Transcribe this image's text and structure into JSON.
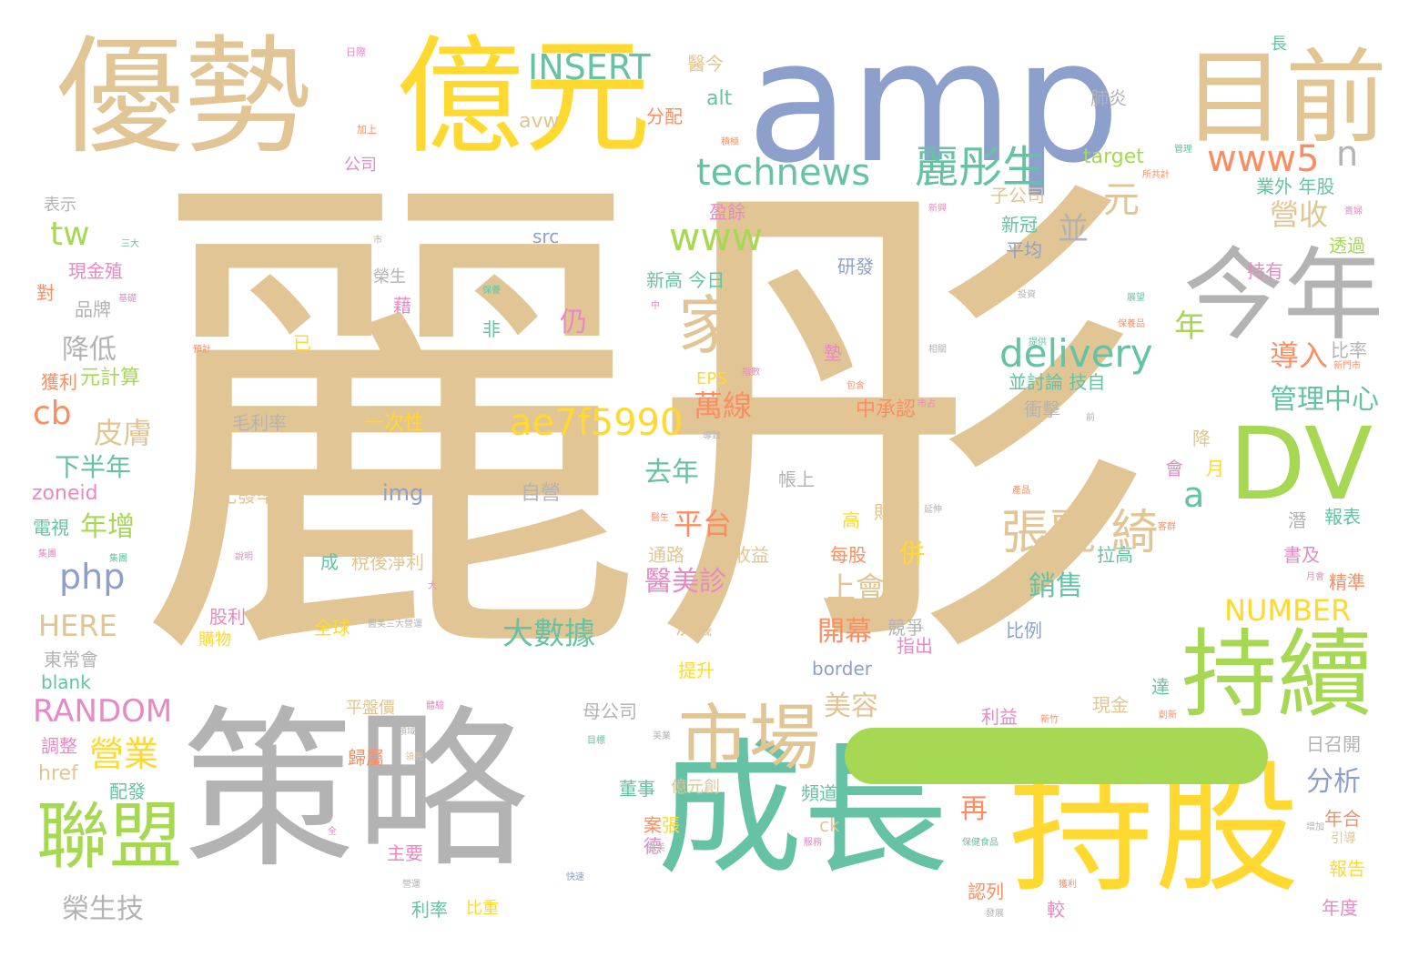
{
  "palette": {
    "tan": "#e2c594",
    "blue": "#8da0cb",
    "yellow": "#ffd92f",
    "grey": "#b3b3b3",
    "teal": "#66c2a5",
    "green": "#a6d854",
    "orange": "#fc8d62",
    "pink": "#e78ac3"
  },
  "words": [
    {
      "text": "麗彤",
      "color": "tan"
    },
    {
      "text": "amp",
      "color": "blue"
    },
    {
      "text": "優勢",
      "color": "tan"
    },
    {
      "text": "億元",
      "color": "yellow"
    },
    {
      "text": "策略",
      "color": "grey"
    },
    {
      "text": "成長",
      "color": "teal"
    },
    {
      "text": "持股",
      "color": "yellow"
    },
    {
      "text": "一",
      "color": "green"
    },
    {
      "text": "目前",
      "color": "tan"
    },
    {
      "text": "今年",
      "color": "grey"
    },
    {
      "text": "DV",
      "color": "green"
    },
    {
      "text": "持續",
      "color": "green"
    },
    {
      "text": "聯盟",
      "color": "green"
    },
    {
      "text": "市場",
      "color": "tan"
    },
    {
      "text": "家",
      "color": "tan"
    },
    {
      "text": "technews",
      "color": "teal"
    },
    {
      "text": "麗彤生",
      "color": "teal"
    },
    {
      "text": "INSERT",
      "color": "teal"
    },
    {
      "text": "www5",
      "color": "orange"
    },
    {
      "text": "www",
      "color": "green"
    },
    {
      "text": "delivery",
      "color": "teal"
    },
    {
      "text": "張麗 綺",
      "color": "tan"
    },
    {
      "text": "ae7f5990",
      "color": "yellow"
    },
    {
      "text": "php",
      "color": "blue"
    },
    {
      "text": "tw",
      "color": "green"
    },
    {
      "text": "cb",
      "color": "orange"
    },
    {
      "text": "營業",
      "color": "yellow"
    },
    {
      "text": "RANDOM",
      "color": "pink"
    },
    {
      "text": "HERE",
      "color": "tan"
    },
    {
      "text": "NUMBER",
      "color": "yellow"
    },
    {
      "text": "大數據",
      "color": "teal"
    },
    {
      "text": "皮膚",
      "color": "tan"
    },
    {
      "text": "降低",
      "color": "grey"
    },
    {
      "text": "下半年",
      "color": "teal"
    },
    {
      "text": "年增",
      "color": "green"
    },
    {
      "text": "元計算",
      "color": "green"
    },
    {
      "text": "zoneid",
      "color": "pink"
    },
    {
      "text": "電視",
      "color": "teal"
    },
    {
      "text": "榮生技",
      "color": "grey"
    },
    {
      "text": "blank",
      "color": "teal"
    },
    {
      "text": "href",
      "color": "tan"
    },
    {
      "text": "調整",
      "color": "pink"
    },
    {
      "text": "東常會",
      "color": "grey"
    },
    {
      "text": "元",
      "color": "tan"
    },
    {
      "text": "a",
      "color": "teal"
    },
    {
      "text": "n",
      "color": "grey"
    },
    {
      "text": "年",
      "color": "green"
    },
    {
      "text": "並",
      "color": "grey"
    },
    {
      "text": "營收",
      "color": "tan"
    },
    {
      "text": "導入",
      "color": "orange"
    },
    {
      "text": "管理中心",
      "color": "teal"
    },
    {
      "text": "萬線",
      "color": "orange"
    },
    {
      "text": "去年",
      "color": "teal"
    },
    {
      "text": "平台",
      "color": "orange"
    },
    {
      "text": "醫美診",
      "color": "pink"
    },
    {
      "text": "上會員",
      "color": "tan"
    },
    {
      "text": "開幕",
      "color": "orange"
    },
    {
      "text": "美容",
      "color": "tan"
    },
    {
      "text": "銷售",
      "color": "teal"
    },
    {
      "text": "分析",
      "color": "blue"
    },
    {
      "text": "再",
      "color": "orange"
    },
    {
      "text": "仍",
      "color": "pink"
    },
    {
      "text": "併",
      "color": "yellow"
    },
    {
      "text": "毛利率",
      "color": "grey"
    },
    {
      "text": "一次性",
      "color": "yellow"
    },
    {
      "text": "中承認",
      "color": "orange"
    },
    {
      "text": "img",
      "color": "blue"
    },
    {
      "text": "自營",
      "color": "grey"
    },
    {
      "text": "配發率",
      "color": "tan"
    },
    {
      "text": "研發",
      "color": "blue"
    },
    {
      "text": "新高 今日",
      "color": "teal"
    },
    {
      "text": "src",
      "color": "blue"
    },
    {
      "text": "alt",
      "color": "teal"
    },
    {
      "text": "分配",
      "color": "orange"
    },
    {
      "text": "avw",
      "color": "tan"
    },
    {
      "text": "醫今",
      "color": "tan"
    },
    {
      "text": "肺炎",
      "color": "grey"
    },
    {
      "text": "target",
      "color": "green"
    },
    {
      "text": "業外 年股",
      "color": "teal"
    },
    {
      "text": "透過",
      "color": "green"
    },
    {
      "text": "持有",
      "color": "pink"
    },
    {
      "text": "比率",
      "color": "grey"
    },
    {
      "text": "新冠",
      "color": "teal"
    },
    {
      "text": "平均",
      "color": "blue"
    },
    {
      "text": "子公司",
      "color": "tan"
    },
    {
      "text": "並討論 技自",
      "color": "teal"
    },
    {
      "text": "衝擊",
      "color": "grey"
    },
    {
      "text": "報表",
      "color": "teal"
    },
    {
      "text": "書及",
      "color": "pink"
    },
    {
      "text": "精準",
      "color": "orange"
    },
    {
      "text": "日召開",
      "color": "grey"
    },
    {
      "text": "年合",
      "color": "orange"
    },
    {
      "text": "報告",
      "color": "yellow"
    },
    {
      "text": "年度",
      "color": "pink"
    },
    {
      "text": "引導",
      "color": "tan"
    },
    {
      "text": "拉高",
      "color": "teal"
    },
    {
      "text": "利益",
      "color": "pink"
    },
    {
      "text": "比例",
      "color": "blue"
    },
    {
      "text": "現金",
      "color": "tan"
    },
    {
      "text": "達",
      "color": "teal"
    },
    {
      "text": "會",
      "color": "pink"
    },
    {
      "text": "月",
      "color": "yellow"
    },
    {
      "text": "降",
      "color": "tan"
    },
    {
      "text": "潛",
      "color": "grey"
    },
    {
      "text": "EPS",
      "color": "yellow"
    },
    {
      "text": "帳上",
      "color": "grey"
    },
    {
      "text": "高",
      "color": "yellow"
    },
    {
      "text": "財務",
      "color": "tan"
    },
    {
      "text": "通路",
      "color": "tan"
    },
    {
      "text": "收益",
      "color": "tan"
    },
    {
      "text": "每股",
      "color": "orange"
    },
    {
      "text": "決議",
      "color": "tan"
    },
    {
      "text": "競爭",
      "color": "grey"
    },
    {
      "text": "指出",
      "color": "pink"
    },
    {
      "text": "border",
      "color": "blue"
    },
    {
      "text": "提升",
      "color": "yellow"
    },
    {
      "text": "稅後淨利",
      "color": "tan"
    },
    {
      "text": "成",
      "color": "teal"
    },
    {
      "text": "股利",
      "color": "pink"
    },
    {
      "text": "全球",
      "color": "yellow"
    },
    {
      "text": "購物",
      "color": "yellow"
    },
    {
      "text": "平盤價",
      "color": "tan"
    },
    {
      "text": "歸屬",
      "color": "orange"
    },
    {
      "text": "母公司",
      "color": "grey"
    },
    {
      "text": "配發",
      "color": "teal"
    },
    {
      "text": "董事",
      "color": "teal"
    },
    {
      "text": "億元創",
      "color": "tan"
    },
    {
      "text": "頻道",
      "color": "teal"
    },
    {
      "text": "案",
      "color": "orange"
    },
    {
      "text": "德",
      "color": "pink"
    },
    {
      "text": "主要",
      "color": "pink"
    },
    {
      "text": "利率",
      "color": "teal"
    },
    {
      "text": "比重",
      "color": "yellow"
    },
    {
      "text": "認列",
      "color": "orange"
    },
    {
      "text": "較",
      "color": "pink"
    },
    {
      "text": "ck",
      "color": "tan"
    },
    {
      "text": "現金殖",
      "color": "pink"
    },
    {
      "text": "對",
      "color": "orange"
    },
    {
      "text": "品牌",
      "color": "grey"
    },
    {
      "text": "獲利",
      "color": "orange"
    },
    {
      "text": "表示",
      "color": "grey"
    },
    {
      "text": "公司",
      "color": "pink"
    },
    {
      "text": "盈餘",
      "color": "pink"
    },
    {
      "text": "榮生",
      "color": "grey"
    },
    {
      "text": "藉",
      "color": "pink"
    },
    {
      "text": "非",
      "color": "teal"
    },
    {
      "text": "已",
      "color": "yellow"
    },
    {
      "text": "墊",
      "color": "pink"
    },
    {
      "text": "近",
      "color": "tan"
    },
    {
      "text": "長",
      "color": "teal"
    },
    {
      "text": "日際",
      "color": "pink"
    },
    {
      "text": "加上",
      "color": "orange"
    },
    {
      "text": "三大",
      "color": "teal"
    },
    {
      "text": "市",
      "color": "grey"
    },
    {
      "text": "基礎",
      "color": "pink"
    },
    {
      "text": "預計",
      "color": "orange"
    },
    {
      "text": "中",
      "color": "pink"
    },
    {
      "text": "保養",
      "color": "teal"
    },
    {
      "text": "所共計",
      "color": "orange"
    },
    {
      "text": "管理",
      "color": "teal"
    },
    {
      "text": "貴婦",
      "color": "pink"
    },
    {
      "text": "積極",
      "color": "orange"
    },
    {
      "text": "展望",
      "color": "teal"
    },
    {
      "text": "保養品",
      "color": "orange"
    },
    {
      "text": "新門市",
      "color": "orange"
    },
    {
      "text": "包含",
      "color": "orange"
    },
    {
      "text": "前",
      "color": "grey"
    },
    {
      "text": "指數",
      "color": "pink"
    },
    {
      "text": "相關",
      "color": "grey"
    },
    {
      "text": "導致",
      "color": "grey"
    },
    {
      "text": "產品",
      "color": "orange"
    },
    {
      "text": "新竹",
      "color": "orange"
    },
    {
      "text": "月會",
      "color": "pink"
    },
    {
      "text": "創新",
      "color": "orange"
    },
    {
      "text": "美業",
      "color": "grey"
    },
    {
      "text": "增加",
      "color": "grey"
    },
    {
      "text": "集團",
      "color": "teal"
    },
    {
      "text": "說明",
      "color": "pink"
    },
    {
      "text": "集團",
      "color": "pink"
    },
    {
      "text": "醫美三大營運",
      "color": "grey"
    },
    {
      "text": "大",
      "color": "pink"
    },
    {
      "text": "領先",
      "color": "tan"
    },
    {
      "text": "張",
      "color": "yellow"
    },
    {
      "text": "愛美",
      "color": "grey"
    },
    {
      "text": "快速",
      "color": "blue"
    },
    {
      "text": "保健食品",
      "color": "teal"
    },
    {
      "text": "獲利",
      "color": "orange"
    },
    {
      "text": "發展",
      "color": "grey"
    },
    {
      "text": "全",
      "color": "pink"
    },
    {
      "text": "營運",
      "color": "grey"
    },
    {
      "text": "服務",
      "color": "pink"
    },
    {
      "text": "領域",
      "color": "grey"
    },
    {
      "text": "體驗",
      "color": "pink"
    },
    {
      "text": "目標",
      "color": "teal"
    },
    {
      "text": "延伸",
      "color": "grey"
    },
    {
      "text": "醫生",
      "color": "orange"
    },
    {
      "text": "客群",
      "color": "orange"
    },
    {
      "text": "市占",
      "color": "pink"
    },
    {
      "text": "投資",
      "color": "grey"
    },
    {
      "text": "提供",
      "color": "teal"
    },
    {
      "text": "新興",
      "color": "pink"
    }
  ]
}
